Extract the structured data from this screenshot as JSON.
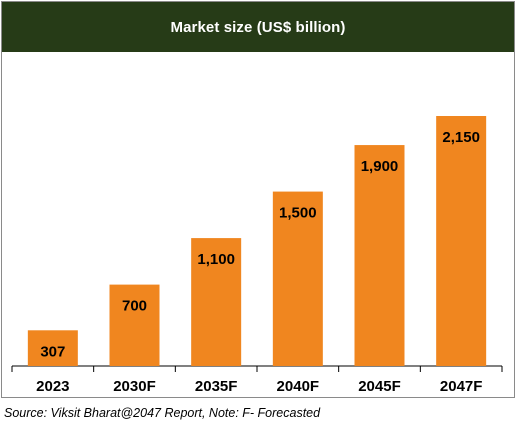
{
  "header": {
    "title": "Market size  (US$ billion)"
  },
  "footer": {
    "source": "Source: Viksit Bharat@2047 Report, Note: F- Forecasted"
  },
  "colors": {
    "header_bg": "#263b17",
    "bar": "#f0861f",
    "axis": "#000000"
  },
  "chart_data": {
    "type": "bar",
    "title": "Market size  (US$ billion)",
    "categories": [
      "2023",
      "2030F",
      "2035F",
      "2040F",
      "2045F",
      "2047F"
    ],
    "values": [
      307,
      700,
      1100,
      1500,
      1900,
      2150
    ],
    "value_labels": [
      "307",
      "700",
      "1,100",
      "1,500",
      "1,900",
      "2,150"
    ],
    "xlabel": "",
    "ylabel": "",
    "ylim": [
      0,
      2150
    ],
    "grid": false,
    "legend": "none"
  }
}
